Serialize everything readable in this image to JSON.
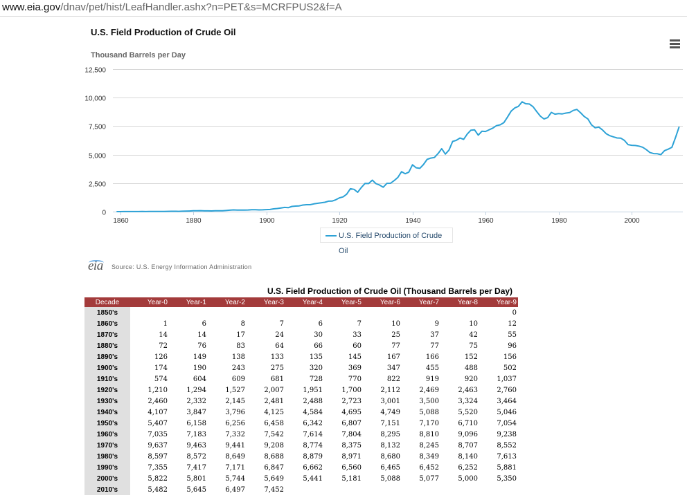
{
  "browser": {
    "url_domain": "www.eia.gov",
    "url_path": "/dnav/pet/hist/LeafHandler.ashx?n=PET&s=MCRFPUS2&f=A"
  },
  "chart_data": {
    "type": "line",
    "title": "U.S. Field Production of Crude Oil",
    "ylabel": "Thousand Barrels per Day",
    "xlabel": "",
    "xlim": [
      1858,
      2014
    ],
    "ylim": [
      0,
      12500
    ],
    "y_ticks": [
      "0",
      "2,500",
      "5,000",
      "7,500",
      "10,000",
      "12,500"
    ],
    "y_tick_values": [
      0,
      2500,
      5000,
      7500,
      10000,
      12500
    ],
    "x_ticks": [
      "1860",
      "1880",
      "1900",
      "1920",
      "1940",
      "1960",
      "1980",
      "2000"
    ],
    "x_tick_values": [
      1860,
      1880,
      1900,
      1920,
      1940,
      1960,
      1980,
      2000
    ],
    "grid": "horizontal",
    "legend": "bottom-center",
    "color": "#2da2d6",
    "series": [
      {
        "name": "U.S. Field Production of Crude Oil",
        "x_start": 1859,
        "values": [
          0,
          1,
          6,
          8,
          7,
          6,
          7,
          10,
          9,
          10,
          12,
          14,
          14,
          17,
          24,
          30,
          33,
          25,
          37,
          42,
          55,
          72,
          76,
          83,
          64,
          66,
          60,
          77,
          77,
          75,
          96,
          126,
          149,
          138,
          133,
          135,
          145,
          167,
          166,
          152,
          156,
          174,
          190,
          243,
          275,
          320,
          369,
          347,
          455,
          488,
          502,
          574,
          604,
          609,
          681,
          728,
          770,
          822,
          919,
          920,
          1037,
          1210,
          1294,
          1527,
          2007,
          1951,
          1700,
          2112,
          2469,
          2463,
          2760,
          2460,
          2332,
          2145,
          2481,
          2488,
          2723,
          3001,
          3500,
          3324,
          3464,
          4107,
          3847,
          3796,
          4125,
          4584,
          4695,
          4749,
          5088,
          5520,
          5046,
          5407,
          6158,
          6256,
          6458,
          6342,
          6807,
          7151,
          7170,
          6710,
          7054,
          7035,
          7183,
          7332,
          7542,
          7614,
          7804,
          8295,
          8810,
          9096,
          9238,
          9637,
          9463,
          9441,
          9208,
          8774,
          8375,
          8132,
          8245,
          8707,
          8552,
          8597,
          8572,
          8649,
          8688,
          8879,
          8971,
          8680,
          8349,
          8140,
          7613,
          7355,
          7417,
          7171,
          6847,
          6662,
          6560,
          6465,
          6452,
          6252,
          5881,
          5822,
          5801,
          5744,
          5649,
          5441,
          5181,
          5088,
          5077,
          5000,
          5350,
          5482,
          5645,
          6497,
          7452
        ]
      }
    ]
  },
  "legend_label": "U.S. Field Production of Crude Oil",
  "source_text": "Source: U.S. Energy Information Administration",
  "logo_text": "eia",
  "table": {
    "title": "U.S. Field Production of Crude Oil (Thousand Barrels per Day)",
    "headers": [
      "Decade",
      "Year-0",
      "Year-1",
      "Year-2",
      "Year-3",
      "Year-4",
      "Year-5",
      "Year-6",
      "Year-7",
      "Year-8",
      "Year-9"
    ],
    "rows": [
      {
        "decade": "1850's",
        "values": [
          "",
          "",
          "",
          "",
          "",
          "",
          "",
          "",
          "",
          "0"
        ]
      },
      {
        "decade": "1860's",
        "values": [
          "1",
          "6",
          "8",
          "7",
          "6",
          "7",
          "10",
          "9",
          "10",
          "12"
        ]
      },
      {
        "decade": "1870's",
        "values": [
          "14",
          "14",
          "17",
          "24",
          "30",
          "33",
          "25",
          "37",
          "42",
          "55"
        ]
      },
      {
        "decade": "1880's",
        "values": [
          "72",
          "76",
          "83",
          "64",
          "66",
          "60",
          "77",
          "77",
          "75",
          "96"
        ]
      },
      {
        "decade": "1890's",
        "values": [
          "126",
          "149",
          "138",
          "133",
          "135",
          "145",
          "167",
          "166",
          "152",
          "156"
        ]
      },
      {
        "decade": "1900's",
        "values": [
          "174",
          "190",
          "243",
          "275",
          "320",
          "369",
          "347",
          "455",
          "488",
          "502"
        ]
      },
      {
        "decade": "1910's",
        "values": [
          "574",
          "604",
          "609",
          "681",
          "728",
          "770",
          "822",
          "919",
          "920",
          "1,037"
        ]
      },
      {
        "decade": "1920's",
        "values": [
          "1,210",
          "1,294",
          "1,527",
          "2,007",
          "1,951",
          "1,700",
          "2,112",
          "2,469",
          "2,463",
          "2,760"
        ]
      },
      {
        "decade": "1930's",
        "values": [
          "2,460",
          "2,332",
          "2,145",
          "2,481",
          "2,488",
          "2,723",
          "3,001",
          "3,500",
          "3,324",
          "3,464"
        ]
      },
      {
        "decade": "1940's",
        "values": [
          "4,107",
          "3,847",
          "3,796",
          "4,125",
          "4,584",
          "4,695",
          "4,749",
          "5,088",
          "5,520",
          "5,046"
        ]
      },
      {
        "decade": "1950's",
        "values": [
          "5,407",
          "6,158",
          "6,256",
          "6,458",
          "6,342",
          "6,807",
          "7,151",
          "7,170",
          "6,710",
          "7,054"
        ]
      },
      {
        "decade": "1960's",
        "values": [
          "7,035",
          "7,183",
          "7,332",
          "7,542",
          "7,614",
          "7,804",
          "8,295",
          "8,810",
          "9,096",
          "9,238"
        ]
      },
      {
        "decade": "1970's",
        "values": [
          "9,637",
          "9,463",
          "9,441",
          "9,208",
          "8,774",
          "8,375",
          "8,132",
          "8,245",
          "8,707",
          "8,552"
        ]
      },
      {
        "decade": "1980's",
        "values": [
          "8,597",
          "8,572",
          "8,649",
          "8,688",
          "8,879",
          "8,971",
          "8,680",
          "8,349",
          "8,140",
          "7,613"
        ]
      },
      {
        "decade": "1990's",
        "values": [
          "7,355",
          "7,417",
          "7,171",
          "6,847",
          "6,662",
          "6,560",
          "6,465",
          "6,452",
          "6,252",
          "5,881"
        ]
      },
      {
        "decade": "2000's",
        "values": [
          "5,822",
          "5,801",
          "5,744",
          "5,649",
          "5,441",
          "5,181",
          "5,088",
          "5,077",
          "5,000",
          "5,350"
        ]
      },
      {
        "decade": "2010's",
        "values": [
          "5,482",
          "5,645",
          "6,497",
          "7,452",
          "",
          "",
          "",
          "",
          "",
          ""
        ]
      }
    ]
  }
}
